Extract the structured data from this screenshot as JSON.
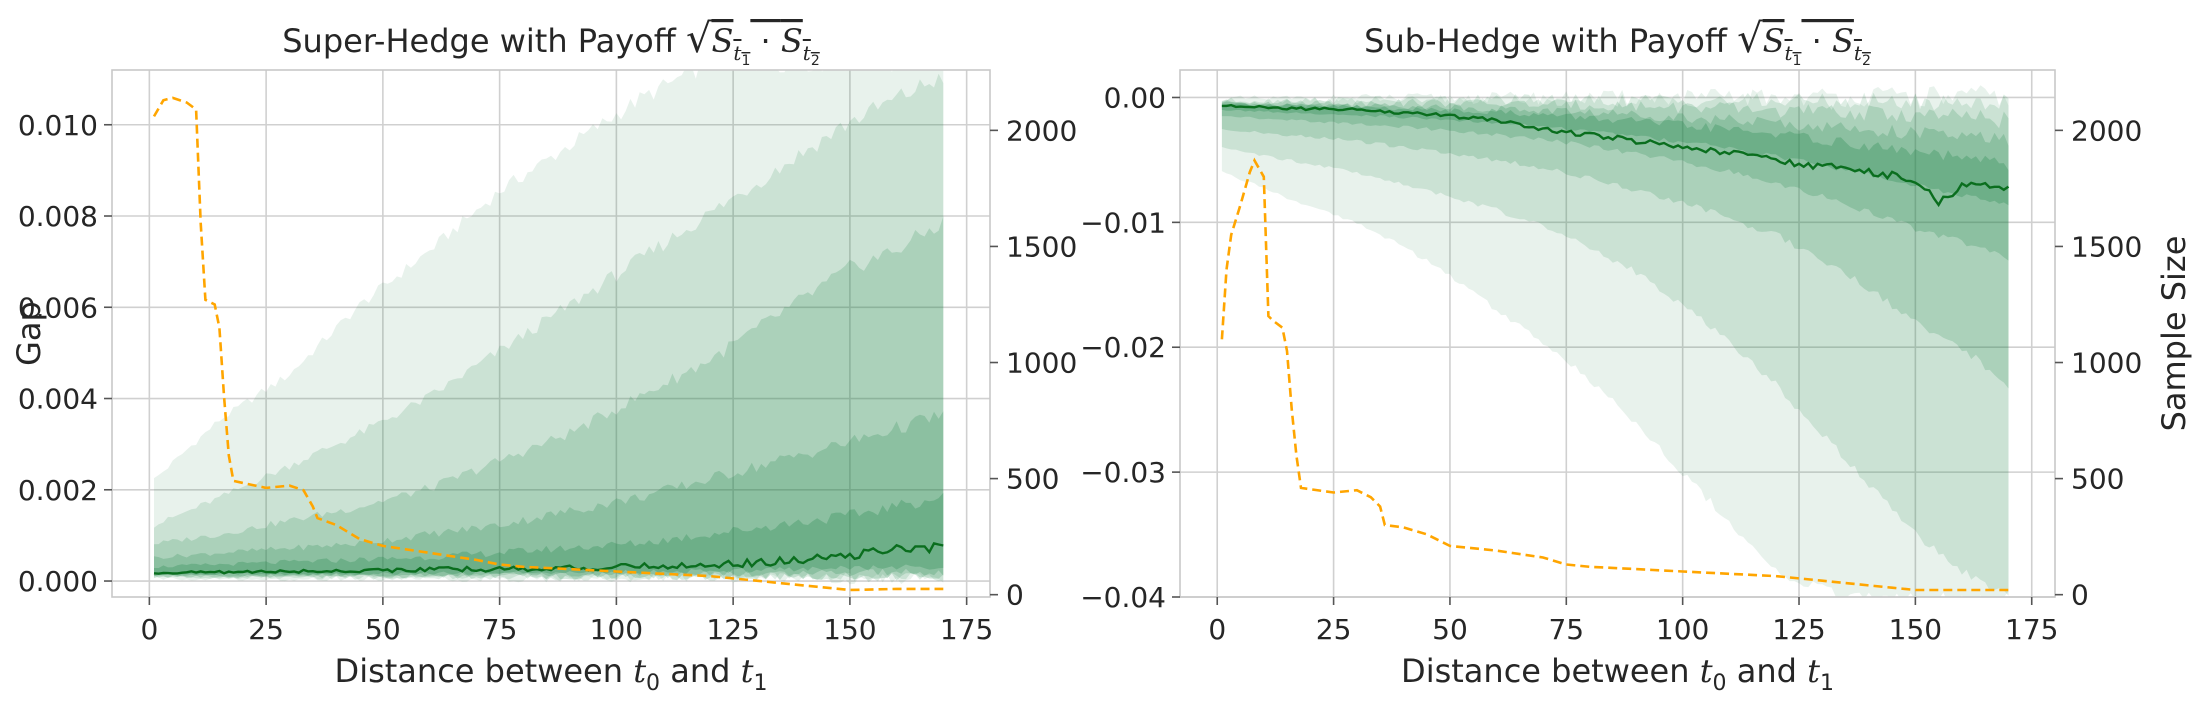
{
  "colors": {
    "median": "#0a6e1e",
    "band": "#1e8449",
    "sample_size": "#ffa500",
    "grid": "#d0d0d0"
  },
  "chart_data": [
    {
      "type": "area",
      "id": "super",
      "title_prefix": "Super-Hedge with Payoff",
      "title_formula": {
        "sqrt_of": "S",
        "sub1": "t",
        "sub1_index": "1",
        "dot": "·",
        "sub2": "t",
        "sub2_index": "2"
      },
      "xlabel": {
        "prefix": "Distance between",
        "var1": "t",
        "var1_index": "0",
        "and": "and",
        "var2": "t",
        "var2_index": "1"
      },
      "ylabel": "Gap",
      "y2label": "",
      "xlim": [
        -8,
        180
      ],
      "ylim": [
        -0.00035,
        0.0112
      ],
      "y2lim": [
        -10,
        2260
      ],
      "xticks": [
        0,
        25,
        50,
        75,
        100,
        125,
        150,
        175
      ],
      "yticks": [
        0.0,
        0.002,
        0.004,
        0.006,
        0.008,
        0.01
      ],
      "ytick_labels": [
        "0.000",
        "0.002",
        "0.004",
        "0.006",
        "0.008",
        "0.010"
      ],
      "y2ticks": [
        0,
        500,
        1000,
        1500,
        2000
      ],
      "grid": true,
      "series": [
        {
          "name": "median gap",
          "style": "solid",
          "x": [
            1,
            10,
            20,
            30,
            40,
            50,
            60,
            70,
            80,
            90,
            100,
            110,
            120,
            130,
            140,
            150,
            155,
            160,
            165,
            170
          ],
          "values": [
            0.00018,
            0.00019,
            0.0002,
            0.00021,
            0.00022,
            0.00024,
            0.00025,
            0.00026,
            0.00027,
            0.00028,
            0.0003,
            0.00033,
            0.00036,
            0.0004,
            0.00046,
            0.00055,
            0.00065,
            0.0007,
            0.00068,
            0.0008
          ]
        },
        {
          "name": "sample size",
          "style": "dashed",
          "axis": "right",
          "x": [
            1,
            3,
            5,
            8,
            10,
            11,
            12,
            14,
            15,
            16,
            17,
            18,
            25,
            30,
            33,
            35,
            36,
            40,
            45,
            50,
            60,
            70,
            75,
            80,
            90,
            100,
            110,
            120,
            130,
            140,
            145,
            150,
            160,
            170
          ],
          "values": [
            2060,
            2130,
            2140,
            2120,
            2090,
            1600,
            1270,
            1250,
            1150,
            850,
            600,
            490,
            460,
            470,
            450,
            380,
            330,
            300,
            240,
            210,
            180,
            150,
            130,
            120,
            110,
            100,
            90,
            80,
            60,
            40,
            30,
            20,
            25,
            25
          ]
        }
      ],
      "quantile_bands": {
        "x": [
          1,
          15,
          30,
          45,
          60,
          75,
          90,
          105,
          120,
          135,
          150,
          160,
          170
        ],
        "upper": [
          [
            0.0022,
            0.0035,
            0.0045,
            0.006,
            0.0072,
            0.0085,
            0.0095,
            0.0105,
            0.0113,
            0.0113,
            0.0113,
            0.0113,
            0.0113
          ],
          [
            0.0012,
            0.0018,
            0.0025,
            0.0032,
            0.004,
            0.005,
            0.006,
            0.007,
            0.008,
            0.009,
            0.01,
            0.0105,
            0.011
          ],
          [
            0.0008,
            0.001,
            0.0013,
            0.0016,
            0.002,
            0.0026,
            0.0032,
            0.004,
            0.0048,
            0.0058,
            0.0068,
            0.0072,
            0.0078
          ],
          [
            0.0005,
            0.0006,
            0.0007,
            0.0008,
            0.001,
            0.0012,
            0.0015,
            0.0018,
            0.0022,
            0.0026,
            0.003,
            0.0033,
            0.0036
          ],
          [
            0.0003,
            0.00035,
            0.0004,
            0.00045,
            0.0005,
            0.0006,
            0.0007,
            0.0008,
            0.001,
            0.0012,
            0.0014,
            0.0016,
            0.0018
          ]
        ],
        "lower": [
          [
            5e-05,
            5e-05,
            5e-05,
            5e-05,
            5e-05,
            5e-05,
            5e-05,
            5e-05,
            5e-05,
            5e-05,
            5e-05,
            5e-05,
            5e-05
          ],
          [
            8e-05,
            8e-05,
            8e-05,
            8e-05,
            8e-05,
            8e-05,
            8e-05,
            8e-05,
            8e-05,
            8e-05,
            8e-05,
            8e-05,
            8e-05
          ],
          [
            0.0001,
            0.0001,
            0.0001,
            0.0001,
            0.0001,
            0.0001,
            0.0001,
            0.0001,
            0.0001,
            0.0001,
            0.0001,
            0.0001,
            0.0001
          ],
          [
            0.00012,
            0.00012,
            0.00012,
            0.00013,
            0.00013,
            0.00014,
            0.00014,
            0.00015,
            0.00016,
            0.00017,
            0.00018,
            0.00019,
            0.0002
          ],
          [
            0.00014,
            0.00015,
            0.00015,
            0.00016,
            0.00017,
            0.00018,
            0.00019,
            0.0002,
            0.00022,
            0.00025,
            0.00028,
            0.0003,
            0.00032
          ]
        ]
      }
    },
    {
      "type": "area",
      "id": "sub",
      "title_prefix": "Sub-Hedge with Payoff",
      "title_formula": {
        "sqrt_of": "S",
        "sub1": "t",
        "sub1_index": "1",
        "dot": "·",
        "sub2": "t",
        "sub2_index": "2"
      },
      "xlabel": {
        "prefix": "Distance between",
        "var1": "t",
        "var1_index": "0",
        "and": "and",
        "var2": "t",
        "var2_index": "1"
      },
      "ylabel": "",
      "y2label": "Sample Size",
      "xlim": [
        -8,
        180
      ],
      "ylim": [
        -0.04,
        0.0022
      ],
      "y2lim": [
        -10,
        2260
      ],
      "xticks": [
        0,
        25,
        50,
        75,
        100,
        125,
        150,
        175
      ],
      "yticks": [
        -0.04,
        -0.03,
        -0.02,
        -0.01,
        0.0
      ],
      "ytick_labels": [
        "−0.04",
        "−0.03",
        "−0.02",
        "−0.01",
        "0.00"
      ],
      "y2ticks": [
        0,
        500,
        1000,
        1500,
        2000
      ],
      "grid": true,
      "series": [
        {
          "name": "median gap",
          "style": "solid",
          "x": [
            1,
            10,
            20,
            30,
            40,
            50,
            60,
            70,
            80,
            90,
            100,
            110,
            120,
            130,
            140,
            150,
            155,
            160,
            165,
            170
          ],
          "values": [
            -0.0006,
            -0.0008,
            -0.0009,
            -0.001,
            -0.0012,
            -0.0015,
            -0.0018,
            -0.0025,
            -0.003,
            -0.0035,
            -0.004,
            -0.0045,
            -0.005,
            -0.0055,
            -0.006,
            -0.0065,
            -0.0085,
            -0.007,
            -0.0072,
            -0.0073
          ]
        },
        {
          "name": "sample size",
          "style": "dashed",
          "axis": "right",
          "x": [
            1,
            2,
            3,
            5,
            7,
            8,
            10,
            11,
            12,
            14,
            15,
            16,
            17,
            18,
            25,
            30,
            33,
            35,
            36,
            40,
            45,
            50,
            60,
            70,
            75,
            80,
            90,
            100,
            110,
            120,
            130,
            140,
            145,
            150,
            160,
            170
          ],
          "values": [
            1100,
            1400,
            1550,
            1680,
            1820,
            1870,
            1800,
            1200,
            1180,
            1150,
            1050,
            800,
            600,
            460,
            440,
            450,
            420,
            380,
            300,
            290,
            260,
            210,
            190,
            160,
            130,
            120,
            110,
            100,
            90,
            80,
            60,
            40,
            30,
            20,
            20,
            20
          ]
        }
      ],
      "quantile_bands": {
        "x": [
          1,
          15,
          30,
          45,
          60,
          75,
          90,
          105,
          120,
          135,
          150,
          160,
          170
        ],
        "upper": [
          [
            -0.0002,
            -0.0002,
            -0.0002,
            -0.0002,
            -0.0002,
            -0.0002,
            -0.0002,
            -0.0002,
            -0.0002,
            -0.0002,
            -0.0002,
            -0.0002,
            -0.0002
          ],
          [
            -0.0003,
            -0.0003,
            -0.0003,
            -0.0003,
            -0.0003,
            -0.0004,
            -0.0004,
            -0.0004,
            -0.0005,
            -0.0005,
            -0.0006,
            -0.0006,
            -0.0006
          ],
          [
            -0.0004,
            -0.0004,
            -0.0005,
            -0.0005,
            -0.0006,
            -0.0007,
            -0.0008,
            -0.001,
            -0.0012,
            -0.0014,
            -0.0016,
            -0.0018,
            -0.002
          ],
          [
            -0.0005,
            -0.0006,
            -0.0007,
            -0.0008,
            -0.001,
            -0.0012,
            -0.0015,
            -0.0018,
            -0.0022,
            -0.0026,
            -0.003,
            -0.0033,
            -0.0036
          ],
          [
            -0.0005,
            -0.0007,
            -0.0008,
            -0.001,
            -0.0012,
            -0.0016,
            -0.002,
            -0.0025,
            -0.003,
            -0.0038,
            -0.0045,
            -0.005,
            -0.0055
          ]
        ],
        "lower": [
          [
            -0.006,
            -0.008,
            -0.01,
            -0.013,
            -0.017,
            -0.021,
            -0.026,
            -0.032,
            -0.038,
            -0.04,
            -0.04,
            -0.04,
            -0.04
          ],
          [
            -0.004,
            -0.005,
            -0.006,
            -0.0075,
            -0.009,
            -0.011,
            -0.014,
            -0.018,
            -0.023,
            -0.029,
            -0.035,
            -0.038,
            -0.04
          ],
          [
            -0.0025,
            -0.003,
            -0.0035,
            -0.0042,
            -0.005,
            -0.006,
            -0.0075,
            -0.009,
            -0.011,
            -0.014,
            -0.018,
            -0.02,
            -0.023
          ],
          [
            -0.0015,
            -0.0018,
            -0.0021,
            -0.0025,
            -0.003,
            -0.0036,
            -0.0045,
            -0.0055,
            -0.0068,
            -0.0085,
            -0.0105,
            -0.0115,
            -0.013
          ],
          [
            -0.001,
            -0.0012,
            -0.0014,
            -0.0017,
            -0.002,
            -0.0025,
            -0.0031,
            -0.0038,
            -0.0047,
            -0.0058,
            -0.007,
            -0.0078,
            -0.0085
          ]
        ]
      }
    }
  ]
}
